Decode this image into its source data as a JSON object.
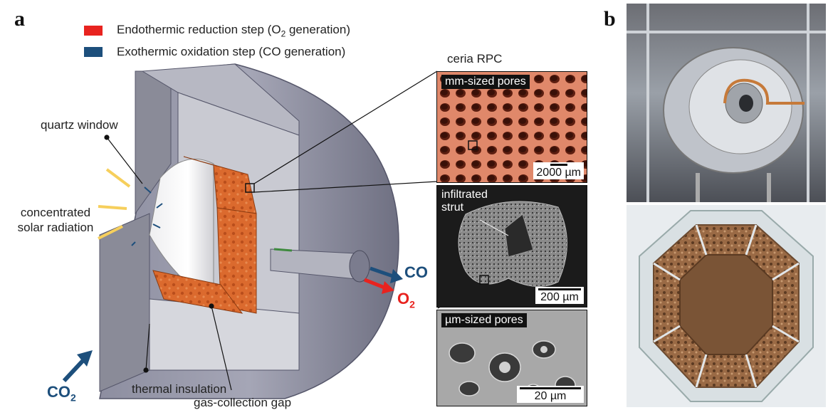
{
  "panel_a": {
    "letter": "a",
    "legend": [
      {
        "label": "Endothermic reduction step (O",
        "sub": "2",
        "tail": " generation)",
        "color": "#e8231f"
      },
      {
        "label": "Exothermic oxidation step (CO generation)",
        "color": "#1d4f7c"
      }
    ],
    "labels": {
      "quartz_window": "quartz window",
      "concentrated_1": "concentrated",
      "concentrated_2": "solar radiation",
      "thermal_insulation": "thermal insulation",
      "gas_gap": "gas-collection gap",
      "ceria": "ceria RPC"
    },
    "gases": {
      "co": "CO",
      "o2": "O",
      "o2_sub": "2",
      "co2": "CO",
      "co2_sub": "2"
    },
    "micrographs": [
      {
        "tag": "mm-sized pores",
        "scale": "2000 µm"
      },
      {
        "tag_line1": "infiltrated",
        "tag_line2": "strut",
        "scale": "200 µm"
      },
      {
        "tag": "µm-sized pores",
        "scale": "20 µm"
      }
    ]
  },
  "panel_b": {
    "letter": "b"
  },
  "colors": {
    "red": "#e8231f",
    "blue": "#1d4f7c",
    "yellow": "#f6cf5c",
    "ceria": "#d9682c",
    "steel": "#9a9ba6"
  }
}
